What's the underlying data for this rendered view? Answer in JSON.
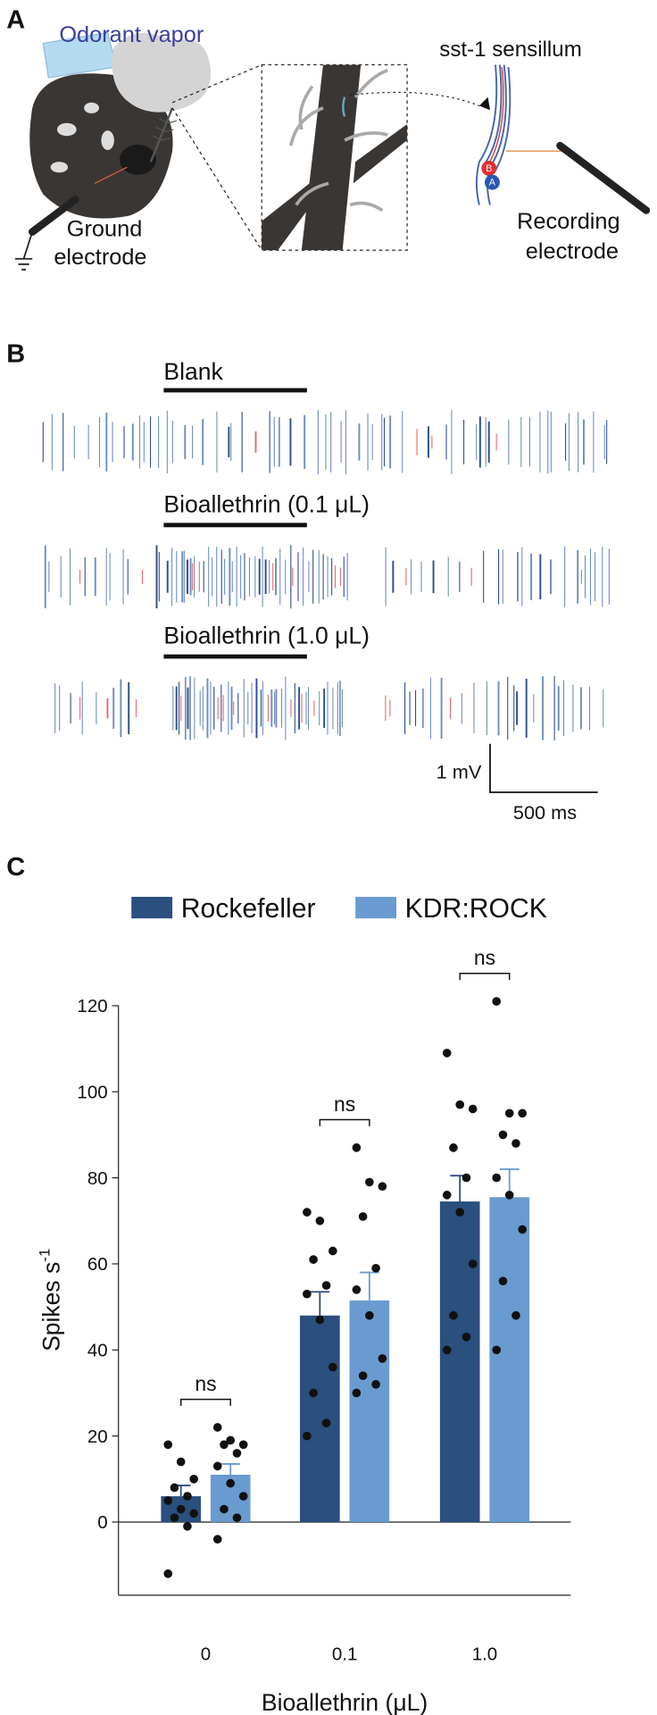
{
  "panel_labels": [
    "A",
    "B",
    "C"
  ],
  "panel_a": {
    "odorant": "Odorant vapor",
    "sensillum": "sst-1 sensillum",
    "ground": [
      "Ground",
      "electrode"
    ],
    "recording": [
      "Recording",
      "electrode"
    ],
    "neurons": [
      "B",
      "A"
    ]
  },
  "panel_b": {
    "traces": [
      "Blank",
      "Bioallethrin (0.1 μL)",
      "Bioallethrin (1.0 μL)"
    ],
    "scale_v": "1 mV",
    "scale_t": "500 ms"
  },
  "chart_data": {
    "type": "bar",
    "categories": [
      "0",
      "0.1",
      "1.0"
    ],
    "xlabel": "Bioallethrin (μL)",
    "ylabel": "Spikes s",
    "ylabel_superscript": "-1",
    "series": [
      {
        "name": "Rockefeller",
        "color": "#2b4f7e",
        "values": [
          6,
          48,
          74.5
        ],
        "errors": [
          2.5,
          5.5,
          6
        ],
        "points": [
          [
            18,
            14,
            10,
            8,
            6,
            5,
            3,
            2,
            1,
            -1,
            -12
          ],
          [
            72,
            70,
            63,
            61,
            55,
            53,
            47,
            36,
            30,
            23,
            20
          ],
          [
            109,
            97,
            96,
            87,
            80,
            76,
            72,
            60,
            48,
            43,
            40
          ]
        ]
      },
      {
        "name": "KDR:ROCK",
        "color": "#6a9bd0",
        "values": [
          11,
          51.5,
          75.5
        ],
        "errors": [
          2.5,
          6.5,
          6.5
        ],
        "points": [
          [
            22,
            19,
            18,
            18,
            16,
            13,
            9,
            6,
            3,
            1,
            -4
          ],
          [
            87,
            79,
            78,
            71,
            59,
            54,
            48,
            38,
            34,
            32,
            30
          ],
          [
            121,
            95,
            95,
            90,
            88,
            80,
            76,
            68,
            56,
            48,
            40
          ]
        ]
      }
    ],
    "annotations": [
      "ns",
      "ns",
      "ns"
    ],
    "ylim": [
      -17,
      120
    ],
    "yticks": [
      0,
      20,
      40,
      60,
      80,
      100,
      120
    ],
    "legend": "top"
  }
}
